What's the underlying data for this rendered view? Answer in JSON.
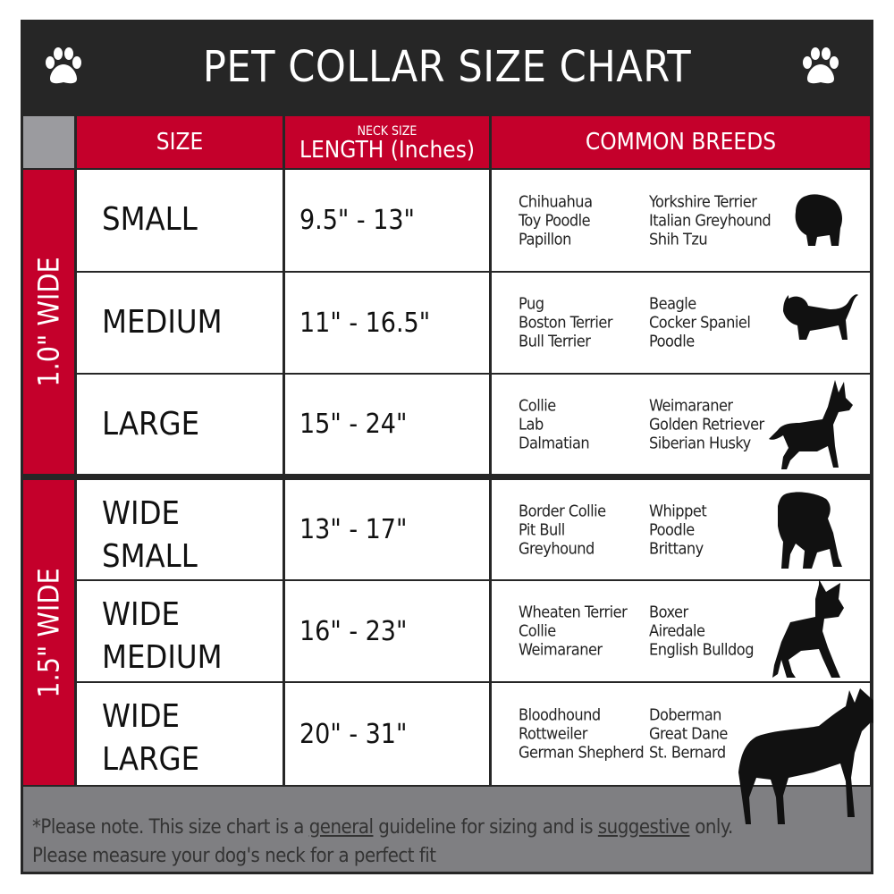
{
  "title": "PET COLLAR SIZE CHART",
  "header": {
    "size": "SIZE",
    "neck_size": "NECK SIZE",
    "length": "LENGTH (Inches)",
    "breeds": "COMMON BREEDS"
  },
  "groups": [
    {
      "label": "1.0\" WIDE"
    },
    {
      "label": "1.5\" WIDE"
    }
  ],
  "rows": [
    {
      "size": "SMALL",
      "length": "9.5\" - 13\"",
      "breeds_a": [
        "Chihuahua",
        "Toy Poodle",
        "Papillon"
      ],
      "breeds_b": [
        "Yorkshire Terrier",
        "Italian Greyhound",
        "Shih Tzu"
      ],
      "icon": "small-dog-silhouette-icon"
    },
    {
      "size": "MEDIUM",
      "length": "11\" - 16.5\"",
      "breeds_a": [
        "Pug",
        "Boston Terrier",
        "Bull Terrier"
      ],
      "breeds_b": [
        "Beagle",
        "Cocker Spaniel",
        "Poodle"
      ],
      "icon": "medium-dog-silhouette-icon"
    },
    {
      "size": "LARGE",
      "length": "15\" - 24\"",
      "breeds_a": [
        "Collie",
        "Lab",
        "Dalmatian"
      ],
      "breeds_b": [
        "Weimaraner",
        "Golden Retriever",
        "Siberian Husky"
      ],
      "icon": "large-dog-silhouette-icon"
    },
    {
      "size": "WIDE SMALL",
      "length": "13\" - 17\"",
      "breeds_a": [
        "Border Collie",
        "Pit Bull",
        "Greyhound"
      ],
      "breeds_b": [
        "Whippet",
        "Poodle",
        "Brittany"
      ],
      "icon": "bulldog-silhouette-icon"
    },
    {
      "size": "WIDE MEDIUM",
      "length": "16\" - 23\"",
      "breeds_a": [
        "Wheaten Terrier",
        "Collie",
        "Weimaraner"
      ],
      "breeds_b": [
        "Boxer",
        "Airedale",
        "English Bulldog"
      ],
      "icon": "pitbull-silhouette-icon"
    },
    {
      "size": "WIDE LARGE",
      "length": "20\" - 31\"",
      "breeds_a": [
        "Bloodhound",
        "Rottweiler",
        "German Shepherd"
      ],
      "breeds_b": [
        "Doberman",
        "Great Dane",
        "St. Bernard"
      ],
      "icon": "doberman-silhouette-icon"
    }
  ],
  "footer": {
    "part1": "*Please note. This size chart is a ",
    "u1": "general",
    "part2": " guideline for sizing and is ",
    "u2": "suggestive",
    "part3": " only.",
    "line2": "Please measure your dog's neck for a perfect fit"
  },
  "colors": {
    "red": "#c4002b",
    "dark": "#262626",
    "grey": "#7f7f82"
  }
}
